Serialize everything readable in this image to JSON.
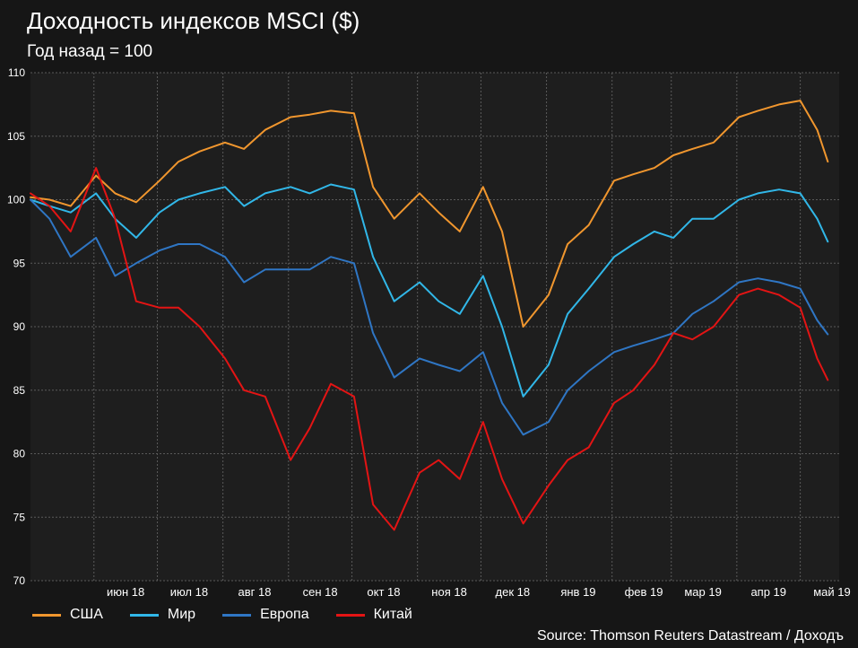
{
  "title": "Доходность индексов MSCI ($)",
  "subtitle": "Год назад = 100",
  "source": "Source: Thomson Reuters Datastream / Доходъ",
  "colors": {
    "background": "#161616",
    "plot_bg": "#1e1e1e",
    "grid": "#5a5a5a",
    "usa": "#f0962e",
    "world": "#31b7e8",
    "europe": "#2f76c4",
    "china": "#e31414"
  },
  "chart_data": {
    "type": "line",
    "title": "Доходность индексов MSCI ($)",
    "subtitle": "Год назад = 100",
    "ylim": [
      70,
      110
    ],
    "y_ticks": [
      70,
      75,
      80,
      85,
      90,
      95,
      100,
      105,
      110
    ],
    "x_range": [
      "2018-05-01",
      "2019-05-15"
    ],
    "x_ticks": [
      "июн 18",
      "июл 18",
      "авг 18",
      "сен 18",
      "окт 18",
      "ноя 18",
      "дек 18",
      "янв 19",
      "фев 19",
      "мар 19",
      "апр 19",
      "май 19"
    ],
    "grid": true,
    "legend_position": "bottom",
    "x": [
      "2018-05-01",
      "2018-05-10",
      "2018-05-20",
      "2018-06-01",
      "2018-06-10",
      "2018-06-20",
      "2018-07-01",
      "2018-07-10",
      "2018-07-20",
      "2018-08-01",
      "2018-08-10",
      "2018-08-20",
      "2018-09-01",
      "2018-09-10",
      "2018-09-20",
      "2018-10-01",
      "2018-10-10",
      "2018-10-20",
      "2018-11-01",
      "2018-11-10",
      "2018-11-20",
      "2018-12-01",
      "2018-12-10",
      "2018-12-20",
      "2019-01-01",
      "2019-01-10",
      "2019-01-20",
      "2019-02-01",
      "2019-02-10",
      "2019-02-20",
      "2019-03-01",
      "2019-03-10",
      "2019-03-20",
      "2019-04-01",
      "2019-04-10",
      "2019-04-20",
      "2019-04-30",
      "2019-05-08",
      "2019-05-13"
    ],
    "series": [
      {
        "name": "США",
        "values": [
          100.2,
          100.0,
          99.5,
          101.9,
          100.5,
          99.8,
          101.5,
          103.0,
          103.8,
          104.5,
          104.0,
          105.5,
          106.5,
          106.7,
          107.0,
          106.8,
          101.0,
          98.5,
          100.5,
          99.0,
          97.5,
          101.0,
          97.5,
          90.0,
          92.5,
          96.5,
          98.0,
          101.5,
          102.0,
          102.5,
          103.5,
          104.0,
          104.5,
          106.5,
          107.0,
          107.5,
          107.8,
          105.5,
          103.0
        ]
      },
      {
        "name": "Мир",
        "values": [
          100.0,
          99.5,
          99.0,
          100.5,
          98.5,
          97.0,
          99.0,
          100.0,
          100.5,
          101.0,
          99.5,
          100.5,
          101.0,
          100.5,
          101.2,
          100.8,
          95.5,
          92.0,
          93.5,
          92.0,
          91.0,
          94.0,
          90.0,
          84.5,
          87.0,
          91.0,
          93.0,
          95.5,
          96.5,
          97.5,
          97.0,
          98.5,
          98.5,
          100.0,
          100.5,
          100.8,
          100.5,
          98.5,
          96.7
        ]
      },
      {
        "name": "Европа",
        "values": [
          100.0,
          98.5,
          95.5,
          97.0,
          94.0,
          95.0,
          96.0,
          96.5,
          96.5,
          95.5,
          93.5,
          94.5,
          94.5,
          94.5,
          95.5,
          95.0,
          89.5,
          86.0,
          87.5,
          87.0,
          86.5,
          88.0,
          84.0,
          81.5,
          82.5,
          85.0,
          86.5,
          88.0,
          88.5,
          89.0,
          89.5,
          91.0,
          92.0,
          93.5,
          93.8,
          93.5,
          93.0,
          90.5,
          89.4
        ]
      },
      {
        "name": "Китай",
        "values": [
          100.5,
          99.5,
          97.5,
          102.5,
          98.5,
          92.0,
          91.5,
          91.5,
          90.0,
          87.5,
          85.0,
          84.5,
          79.5,
          82.0,
          85.5,
          84.5,
          76.0,
          74.0,
          78.5,
          79.5,
          78.0,
          82.5,
          78.0,
          74.5,
          77.5,
          79.5,
          80.5,
          84.0,
          85.0,
          87.0,
          89.5,
          89.0,
          90.0,
          92.5,
          93.0,
          92.5,
          91.5,
          87.5,
          85.8
        ]
      }
    ]
  }
}
